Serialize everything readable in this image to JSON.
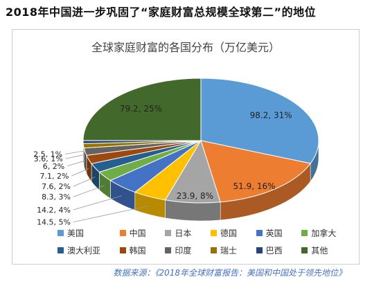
{
  "headline": "2018年中国进一步巩固了“家庭财富总规模全球第二”的地位",
  "source": "数据来源：《2018年全球财富报告：美国和中国处于领先地位》",
  "chart_data": {
    "type": "pie",
    "title": "全球家庭财富的各国分布（万亿美元）",
    "legend_position": "bottom",
    "slices": [
      {
        "name": "美国",
        "value": 98.2,
        "percent": 31,
        "label": "98.2, 31%",
        "color": "#5b9bd5"
      },
      {
        "name": "中国",
        "value": 51.9,
        "percent": 16,
        "label": "51.9, 16%",
        "color": "#ed7d31"
      },
      {
        "name": "日本",
        "value": 23.9,
        "percent": 8,
        "label": "23.9, 8%",
        "color": "#a5a5a5"
      },
      {
        "name": "德国",
        "value": 14.5,
        "percent": 5,
        "label": "14.5, 5%",
        "color": "#ffc000"
      },
      {
        "name": "英国",
        "value": 14.2,
        "percent": 4,
        "label": "14.2, 4%",
        "color": "#4472c4"
      },
      {
        "name": "加拿大",
        "value": 8.3,
        "percent": 3,
        "label": "8.3, 3%",
        "color": "#70ad47"
      },
      {
        "name": "澳大利亚",
        "value": 7.6,
        "percent": 2,
        "label": "7.6, 2%",
        "color": "#255e91"
      },
      {
        "name": "韩国",
        "value": 7.1,
        "percent": 2,
        "label": "7.1, 2%",
        "color": "#9e480e"
      },
      {
        "name": "印度",
        "value": 6,
        "percent": 2,
        "label": "6, 2%",
        "color": "#636363"
      },
      {
        "name": "瑞士",
        "value": 3.6,
        "percent": 1,
        "label": "3.6, 1%",
        "color": "#997300"
      },
      {
        "name": "巴西",
        "value": 2.5,
        "percent": 1,
        "label": "2.5, 1%",
        "color": "#264478"
      },
      {
        "name": "其他",
        "value": 79.2,
        "percent": 25,
        "label": "79.2, 25%",
        "color": "#43682b"
      }
    ]
  }
}
